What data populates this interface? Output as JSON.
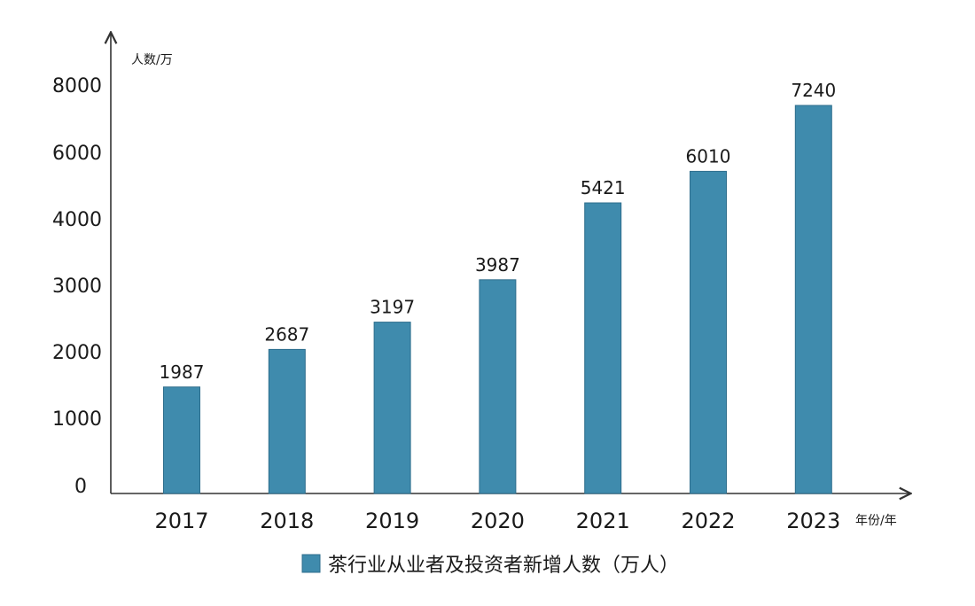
{
  "colors": {
    "bar": "#3f8bad",
    "bar_border": "#2d6d8c",
    "axis": "#333333"
  },
  "chart_data": {
    "type": "bar",
    "categories": [
      "2017",
      "2018",
      "2019",
      "2020",
      "2021",
      "2022",
      "2023"
    ],
    "series": [
      {
        "name": "茶行业从业者及投资者新增人数（万人）",
        "values": [
          1987,
          2687,
          3197,
          3987,
          5421,
          6010,
          7240
        ]
      }
    ],
    "data_labels": [
      "1987",
      "2687",
      "3197",
      "3987",
      "5421",
      "6010",
      "7240"
    ],
    "y_tick_labels": [
      "0",
      "1000",
      "2000",
      "3000",
      "4000",
      "6000",
      "8000"
    ],
    "ylabel": "人数/万",
    "xlabel": "年份/年",
    "legend_position": "bottom-center",
    "grid": false
  }
}
